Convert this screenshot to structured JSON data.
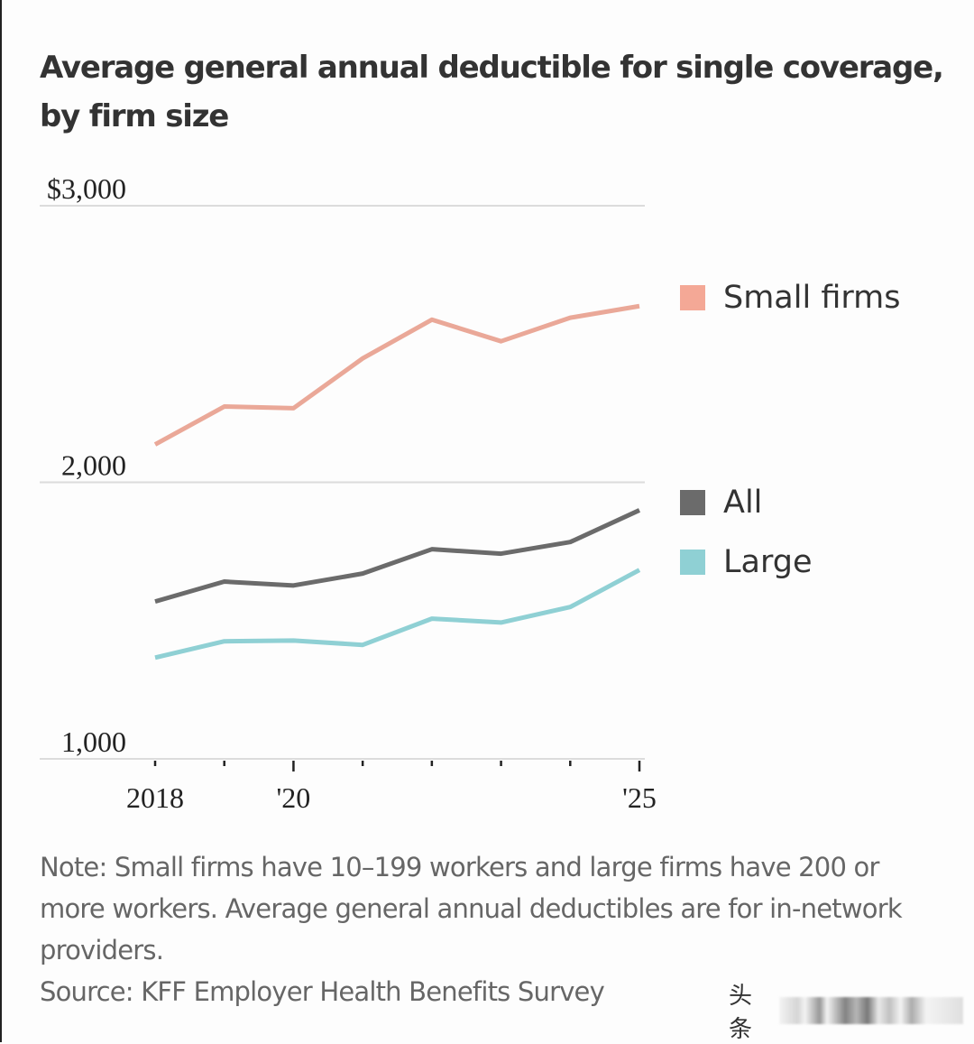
{
  "title": "Average general annual deductible for single coverage, by firm size",
  "note": "Note: Small firms have 10–199 workers and large firms have 200 or more workers. Average general annual deductibles are for in-network providers.",
  "source": "Source: KFF Employer Health Benefits Survey",
  "watermark": "头条",
  "chart_data": {
    "type": "line",
    "title": "Average general annual deductible for single coverage, by firm size",
    "xlabel": "",
    "ylabel": "",
    "x": [
      2018,
      2019,
      2020,
      2021,
      2022,
      2023,
      2024,
      2025
    ],
    "x_tick_labels": [
      {
        "x": 2018,
        "label": "2018"
      },
      {
        "x": 2020,
        "label": "'20"
      },
      {
        "x": 2025,
        "label": "'25"
      }
    ],
    "y_ticks": [
      {
        "value": 1000,
        "label": "1,000"
      },
      {
        "value": 2000,
        "label": "2,000"
      },
      {
        "value": 3000,
        "label": "$3,000"
      }
    ],
    "ylim": [
      1000,
      3000
    ],
    "grid": "horizontal",
    "legend_position": "right",
    "series": [
      {
        "name": "Small firms",
        "color": "#eaa898",
        "values": [
          2137,
          2274,
          2268,
          2448,
          2588,
          2510,
          2595,
          2637
        ]
      },
      {
        "name": "All",
        "color": "#6b6b6b",
        "values": [
          1569,
          1641,
          1627,
          1670,
          1758,
          1742,
          1784,
          1899
        ]
      },
      {
        "name": "Large",
        "color": "#8fd0d4",
        "values": [
          1366,
          1425,
          1428,
          1412,
          1507,
          1493,
          1549,
          1683
        ]
      }
    ]
  }
}
